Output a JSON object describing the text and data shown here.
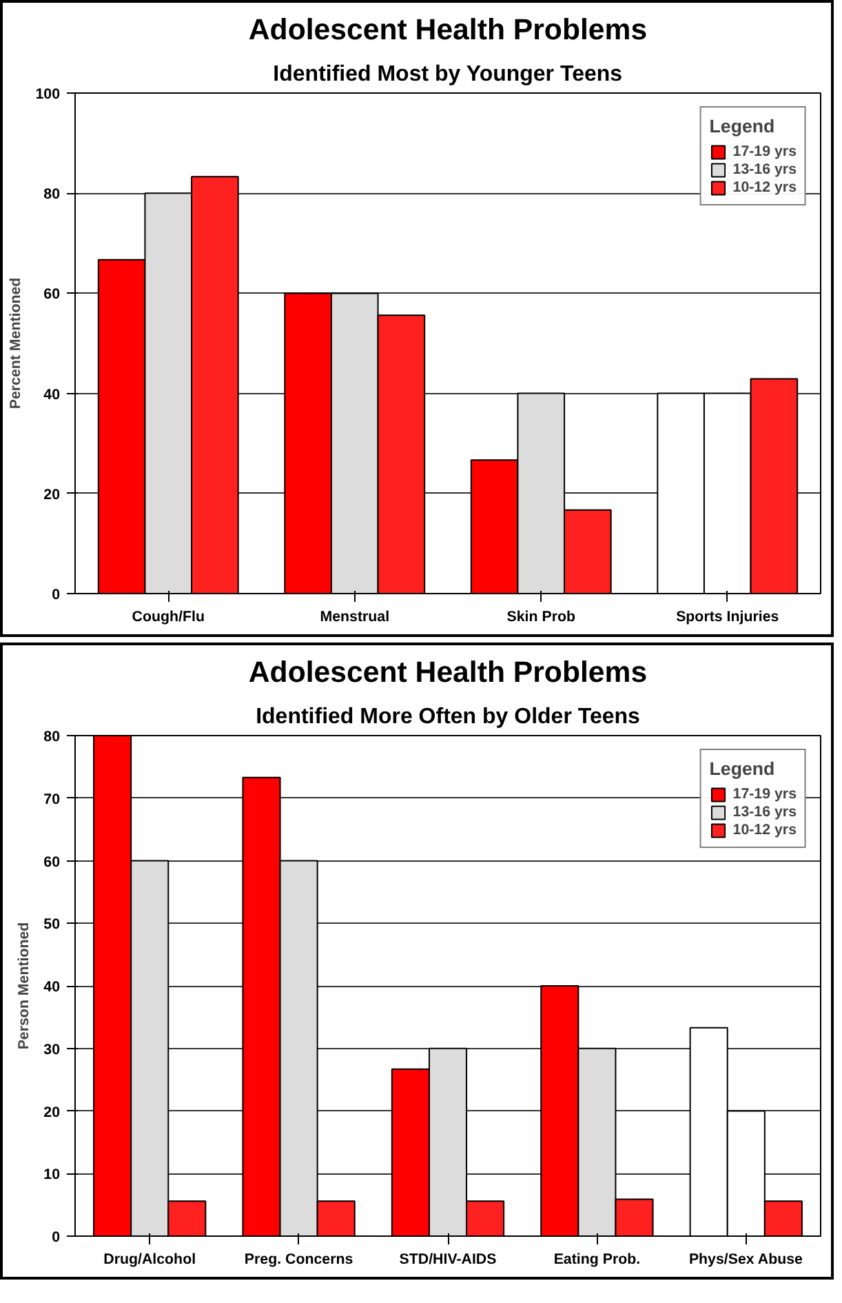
{
  "chart_data": [
    {
      "type": "bar",
      "title": "Adolescent Health Problems",
      "subtitle": "Identified Most by Younger Teens",
      "ylabel": "Percent Mentioned",
      "legend_title": "Legend",
      "categories": [
        "Cough/Flu",
        "Menstrual",
        "Skin Prob",
        "Sports Injuries"
      ],
      "ylim": [
        0,
        100
      ],
      "yticks": [
        0,
        20,
        40,
        60,
        80,
        100
      ],
      "grid": "y",
      "legend": "top right",
      "series": [
        {
          "name": "17-19 yrs",
          "color": "#ff0000",
          "colors": [
            "#ff0000",
            "#ff0000",
            "#ff0000",
            "#ffffff"
          ],
          "values": [
            66.7,
            60,
            26.7,
            40
          ]
        },
        {
          "name": "13-16 yrs",
          "color": "#dcdcdc",
          "colors": [
            "#dcdcdc",
            "#dcdcdc",
            "#dcdcdc",
            "#ffffff"
          ],
          "values": [
            80,
            60,
            40,
            40
          ]
        },
        {
          "name": "10-12 yrs",
          "color": "#ff2020",
          "values": [
            83.3,
            55.6,
            16.7,
            42.9
          ]
        }
      ]
    },
    {
      "type": "bar",
      "title": "Adolescent Health Problems",
      "subtitle": "Identified More Often by Older Teens",
      "ylabel": "Person Mentioned",
      "legend_title": "Legend",
      "categories": [
        "Drug/Alcohol",
        "Preg. Concerns",
        "STD/HIV-AIDS",
        "Eating Prob.",
        "Phys/Sex Abuse"
      ],
      "ylim": [
        0,
        80
      ],
      "yticks": [
        0,
        10,
        20,
        30,
        40,
        50,
        60,
        70,
        80
      ],
      "grid": "y",
      "legend": "top right",
      "series": [
        {
          "name": "17-19 yrs",
          "color": "#ff0000",
          "colors": [
            "#ff0000",
            "#ff0000",
            "#ff0000",
            "#ff0000",
            "#ffffff"
          ],
          "values": [
            80,
            73.3,
            26.7,
            40,
            33.3
          ]
        },
        {
          "name": "13-16 yrs",
          "color": "#dcdcdc",
          "colors": [
            "#dcdcdc",
            "#dcdcdc",
            "#dcdcdc",
            "#dcdcdc",
            "#ffffff"
          ],
          "values": [
            60,
            60,
            30,
            30,
            20
          ]
        },
        {
          "name": "10-12 yrs",
          "color": "#ff2020",
          "values": [
            5.6,
            5.6,
            5.6,
            5.9,
            5.6
          ]
        }
      ]
    }
  ]
}
